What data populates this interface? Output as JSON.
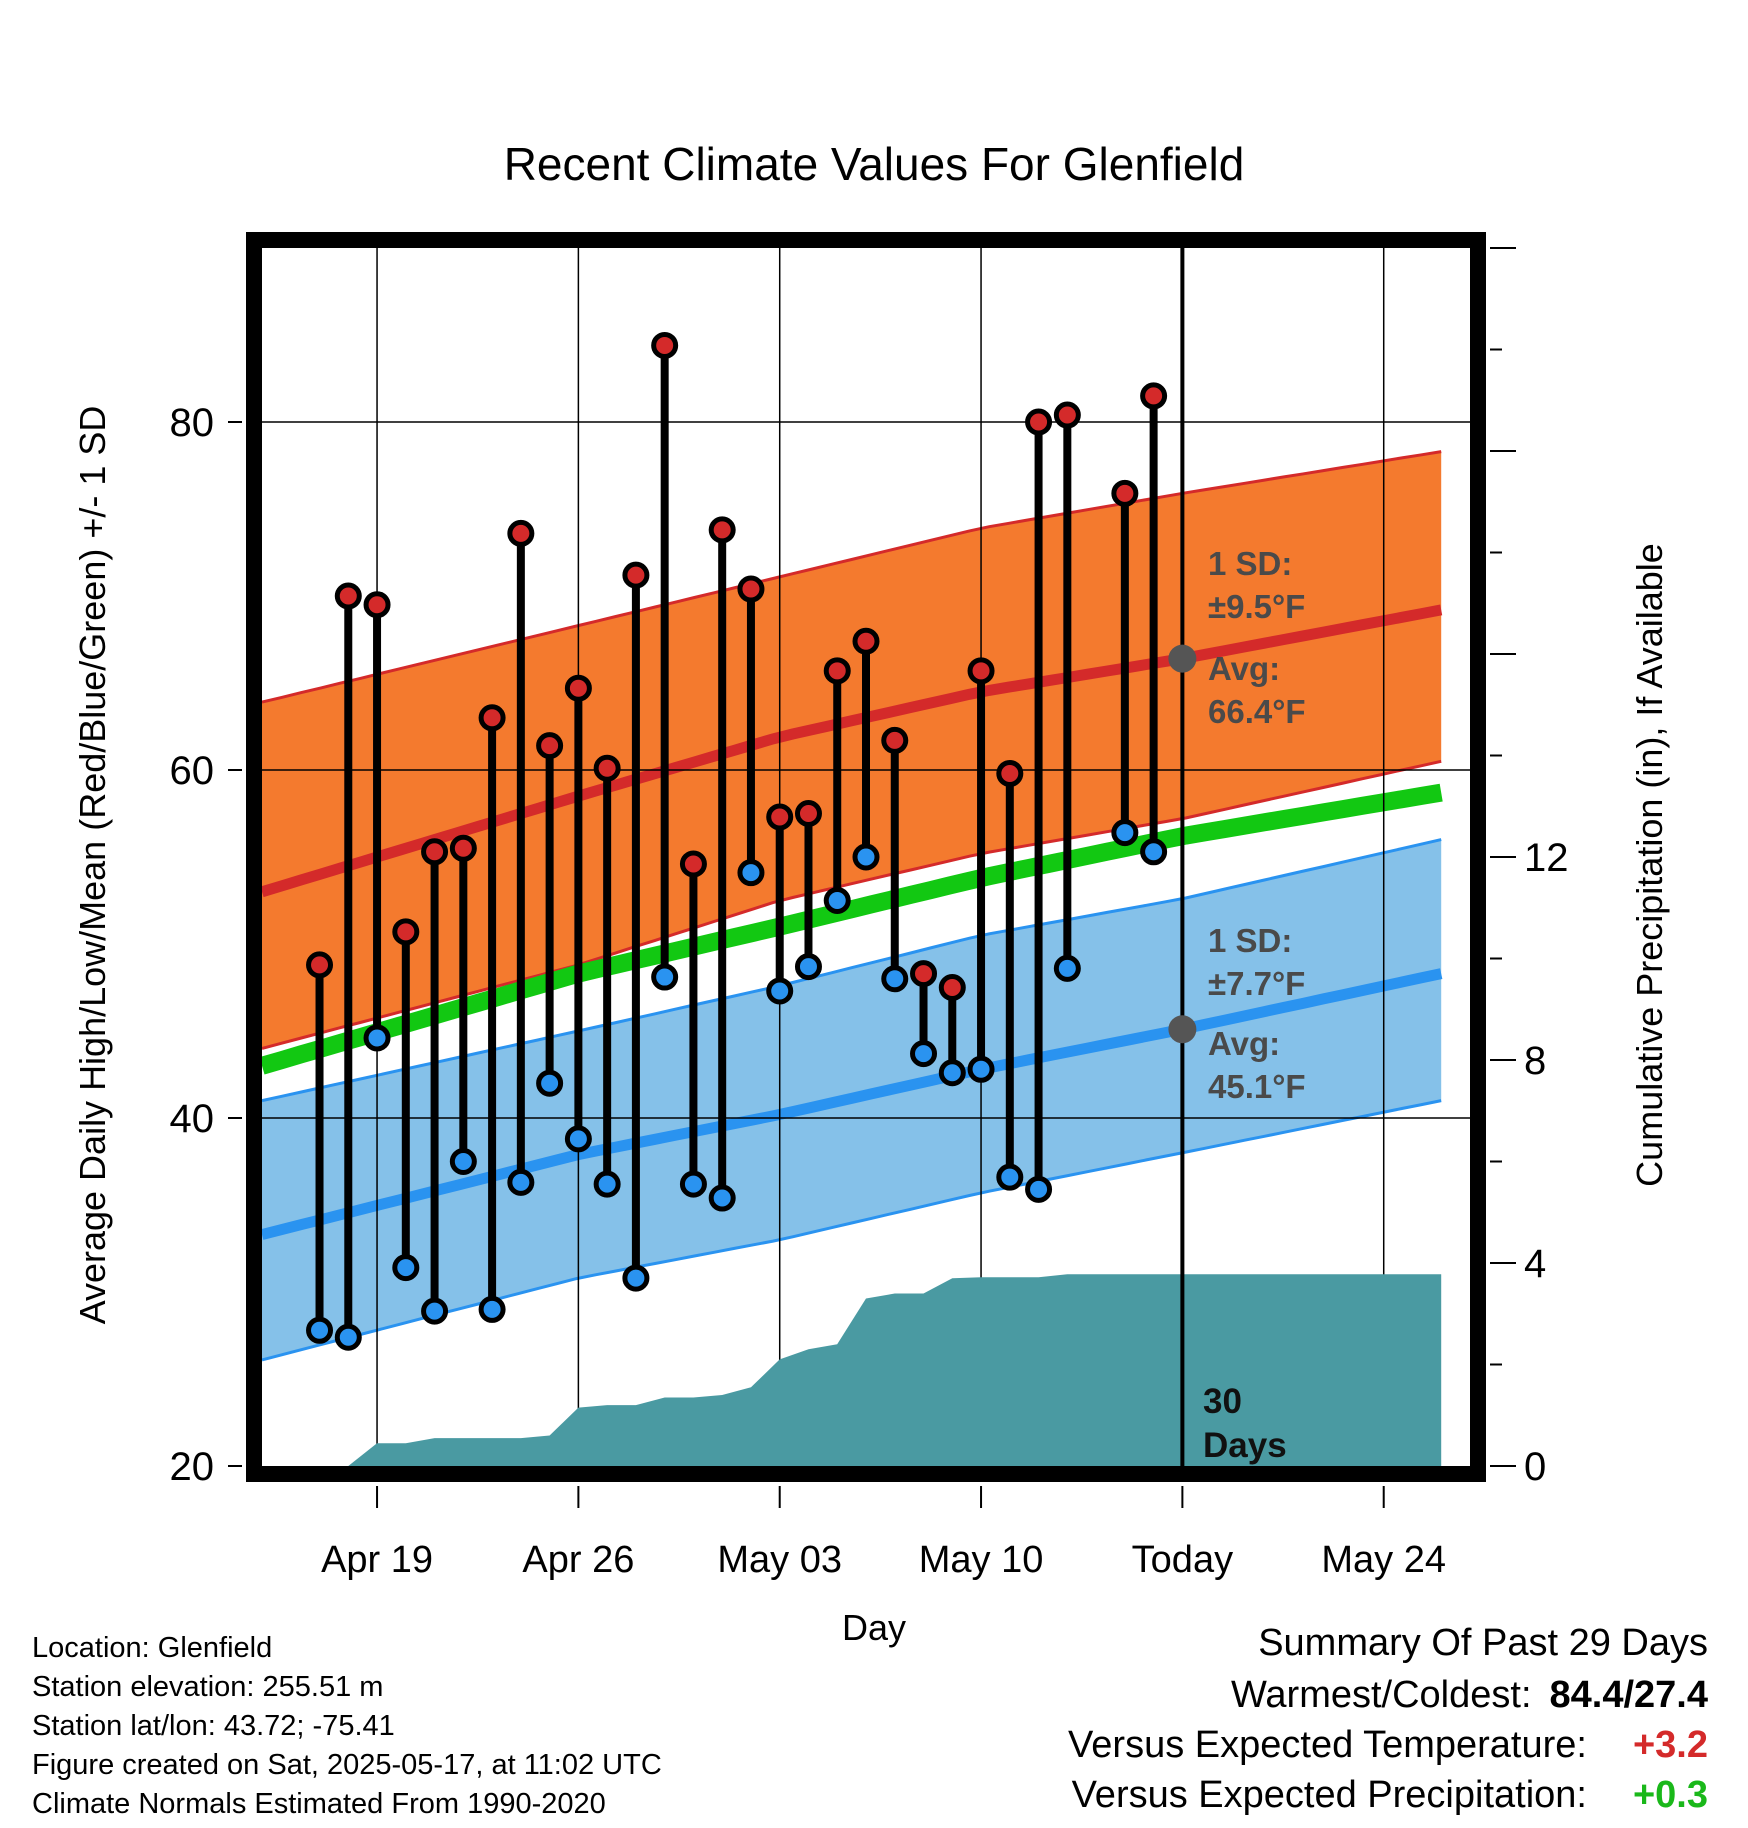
{
  "chart_data": {
    "type": "line",
    "title": "Recent Climate Values For Glenfield",
    "xlabel": "Day",
    "ylabel": "Average Daily High/Low/Mean (Red/Blue/Green) +/- 1 SD",
    "y2label": "Cumulative Precipitation (in), If Available",
    "ylim": [
      20,
      90
    ],
    "y2lim": [
      0,
      24
    ],
    "yticks": [
      "20",
      "40",
      "60",
      "80"
    ],
    "y2ticks": [
      "0",
      "4",
      "8",
      "12"
    ],
    "xlim": [
      "2025-04-15",
      "2025-05-27"
    ],
    "xticks": [
      {
        "date": "2025-04-19",
        "label": "Apr 19"
      },
      {
        "date": "2025-04-26",
        "label": "Apr 26"
      },
      {
        "date": "2025-05-03",
        "label": "May 03"
      },
      {
        "date": "2025-05-10",
        "label": "May 10"
      },
      {
        "date": "2025-05-17",
        "label": "Today"
      },
      {
        "date": "2025-05-24",
        "label": "May 24"
      }
    ],
    "today": "2025-05-17",
    "grid": true,
    "normals": {
      "dates": [
        "2025-04-15",
        "2025-04-26",
        "2025-05-03",
        "2025-05-10",
        "2025-05-17",
        "2025-05-26"
      ],
      "high_avg": [
        53.0,
        58.5,
        61.9,
        64.5,
        66.4,
        69.2
      ],
      "high_upper": [
        63.9,
        68.3,
        71.1,
        73.9,
        75.9,
        78.3
      ],
      "high_lower": [
        44.0,
        48.8,
        52.5,
        55.2,
        57.2,
        60.5
      ],
      "mean_avg": [
        43.0,
        48.3,
        51.0,
        53.8,
        56.2,
        58.7
      ],
      "low_avg": [
        33.3,
        37.9,
        40.2,
        42.8,
        45.1,
        48.3
      ],
      "low_upper": [
        41.0,
        45.0,
        47.6,
        50.5,
        52.6,
        56.0
      ],
      "low_lower": [
        26.1,
        30.8,
        33.0,
        35.7,
        38.0,
        41.0
      ]
    },
    "series": [
      {
        "name": "High",
        "color": "#d42a2a",
        "x": [
          "2025-04-17",
          "2025-04-18",
          "2025-04-19",
          "2025-04-20",
          "2025-04-21",
          "2025-04-22",
          "2025-04-23",
          "2025-04-24",
          "2025-04-25",
          "2025-04-26",
          "2025-04-27",
          "2025-04-28",
          "2025-04-29",
          "2025-04-30",
          "2025-05-01",
          "2025-05-02",
          "2025-05-03",
          "2025-05-04",
          "2025-05-05",
          "2025-05-06",
          "2025-05-07",
          "2025-05-08",
          "2025-05-09",
          "2025-05-10",
          "2025-05-11",
          "2025-05-12",
          "2025-05-13",
          "2025-05-15",
          "2025-05-16"
        ],
        "values": [
          48.8,
          70.0,
          69.5,
          50.7,
          55.3,
          55.5,
          63.0,
          73.6,
          61.4,
          64.7,
          60.1,
          71.2,
          84.4,
          54.6,
          73.8,
          70.4,
          57.3,
          57.5,
          65.7,
          67.4,
          61.7,
          48.3,
          47.5,
          65.7,
          59.8,
          80.0,
          80.4,
          75.9,
          81.5
        ]
      },
      {
        "name": "Low",
        "color": "#2a93f0",
        "x": [
          "2025-04-17",
          "2025-04-18",
          "2025-04-19",
          "2025-04-20",
          "2025-04-21",
          "2025-04-22",
          "2025-04-23",
          "2025-04-24",
          "2025-04-25",
          "2025-04-26",
          "2025-04-27",
          "2025-04-28",
          "2025-04-29",
          "2025-04-30",
          "2025-05-01",
          "2025-05-02",
          "2025-05-03",
          "2025-05-04",
          "2025-05-05",
          "2025-05-06",
          "2025-05-07",
          "2025-05-08",
          "2025-05-09",
          "2025-05-10",
          "2025-05-11",
          "2025-05-12",
          "2025-05-13",
          "2025-05-15",
          "2025-05-16"
        ],
        "values": [
          27.8,
          27.4,
          44.6,
          31.4,
          28.9,
          37.5,
          29.0,
          36.3,
          42.0,
          38.8,
          36.2,
          30.8,
          48.1,
          36.2,
          35.4,
          54.1,
          47.3,
          48.7,
          52.5,
          55.0,
          48.0,
          43.7,
          42.6,
          42.8,
          36.6,
          35.9,
          48.6,
          56.4,
          55.3
        ]
      }
    ],
    "precipitation": {
      "x": [
        "2025-04-15",
        "2025-04-17",
        "2025-04-18",
        "2025-04-19",
        "2025-04-20",
        "2025-04-21",
        "2025-04-22",
        "2025-04-23",
        "2025-04-24",
        "2025-04-25",
        "2025-04-26",
        "2025-04-27",
        "2025-04-28",
        "2025-04-29",
        "2025-04-30",
        "2025-05-01",
        "2025-05-02",
        "2025-05-03",
        "2025-05-04",
        "2025-05-05",
        "2025-05-06",
        "2025-05-07",
        "2025-05-08",
        "2025-05-09",
        "2025-05-10",
        "2025-05-12",
        "2025-05-13",
        "2025-05-17",
        "2025-05-26"
      ],
      "values": [
        0,
        0,
        0.0,
        0.45,
        0.45,
        0.55,
        0.55,
        0.55,
        0.55,
        0.6,
        1.15,
        1.2,
        1.2,
        1.35,
        1.35,
        1.4,
        1.55,
        2.1,
        2.3,
        2.4,
        3.3,
        3.4,
        3.4,
        3.7,
        3.72,
        3.72,
        3.78,
        3.78,
        3.78
      ],
      "color": "#4a9aa2"
    },
    "annotations": {
      "high_sd": "1 SD:",
      "high_sd_val": "±9.5°F",
      "high_avg": "Avg:",
      "high_avg_val": "66.4°F",
      "low_sd": "1 SD:",
      "low_sd_val": "±7.7°F",
      "low_avg": "Avg:",
      "low_avg_val": "45.1°F",
      "days_num": "30",
      "days_word": "Days"
    }
  },
  "footer": {
    "location": "Location: Glenfield",
    "elevation": "Station elevation: 255.51 m",
    "latlon": "Station lat/lon: 43.72; -75.41",
    "created": "Figure created on Sat, 2025-05-17, at 11:02 UTC",
    "normals": "Climate Normals Estimated From 1990-2020"
  },
  "summary": {
    "heading": "Summary Of Past 29 Days",
    "warm_cold_label": "Warmest/Coldest:",
    "warm_cold_value": "84.4/27.4",
    "temp_label": "Versus Expected Temperature:",
    "temp_value": "+3.2",
    "precip_label": "Versus Expected Precipitation:",
    "precip_value": "+0.3"
  }
}
